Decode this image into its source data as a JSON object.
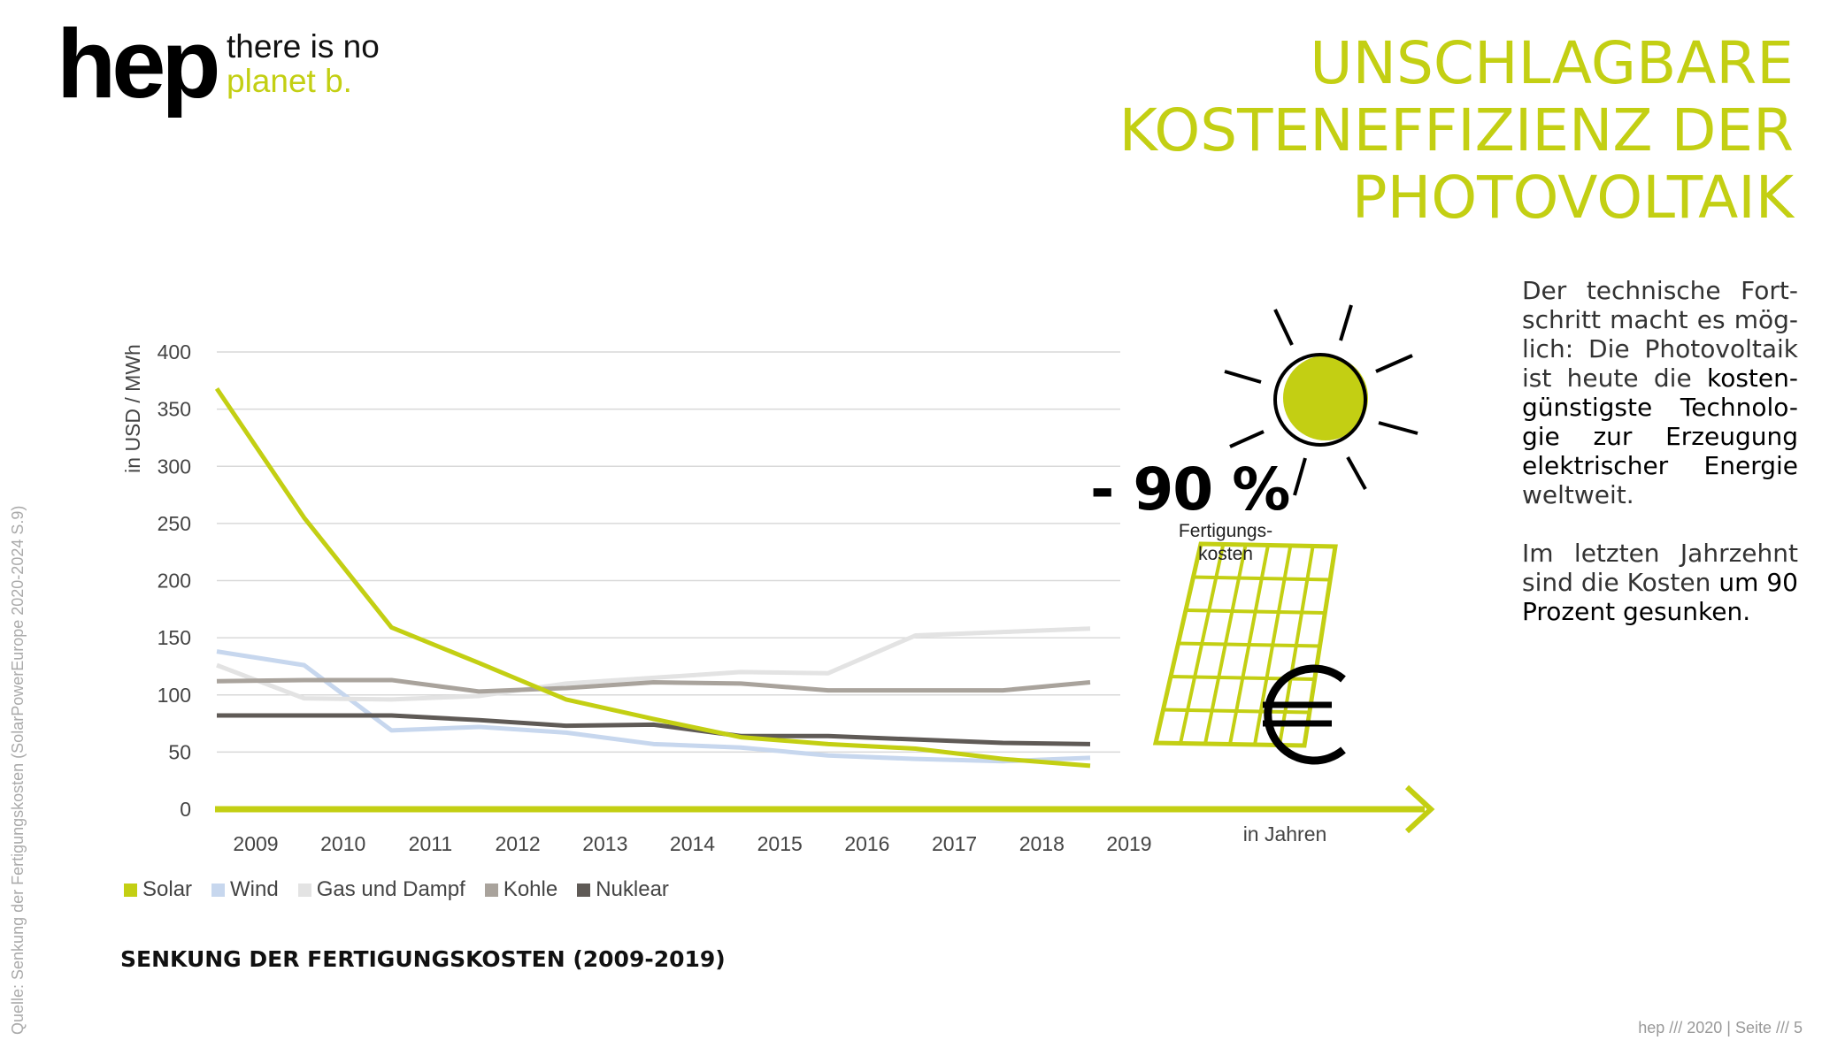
{
  "brand": {
    "logo": "hep",
    "tagline_1": "there is no",
    "tagline_2": "planet b."
  },
  "headline": [
    "UNSCHLAGBARE",
    "KOSTENEFFIZIENZ DER",
    "PHOTOVOLTAIK"
  ],
  "body": {
    "p1_plain_1": "Der technische Fort-schritt macht es mög-lich: Die Photovoltaik ist heute die ",
    "p1_bold": "kosten-günstigste Technolo-gie zur Erzeugung elektrischer Energie",
    "p1_plain_2": " weltweit.",
    "p2_plain": "Im letzten Jahrzehnt sind die Kosten ",
    "p2_bold": "um 90 Prozent gesunken."
  },
  "highlight": {
    "value": "- 90 %",
    "caption_1": "Fertigungs-",
    "caption_2": "kosten"
  },
  "source": "Quelle: Senkung der Fertigungskosten (SolarPowerEurope 2020-2024 S.9)",
  "footer": "hep /// 2020 | Seite /// 5",
  "icons": [
    "sun-icon",
    "solar-panel-icon",
    "euro-icon"
  ],
  "chart_data": {
    "type": "line",
    "title": "SENKUNG DER FERTIGUNGSKOSTEN (2009-2019)",
    "ylabel": "in USD / MWh",
    "xlabel": "in Jahren",
    "ylim": [
      0,
      400
    ],
    "yticks": [
      0,
      50,
      100,
      150,
      200,
      250,
      300,
      350,
      400
    ],
    "grid": true,
    "legend_position": "bottom-left",
    "x": [
      2009,
      2010,
      2011,
      2012,
      2013,
      2014,
      2015,
      2016,
      2017,
      2018,
      2019
    ],
    "series": [
      {
        "name": "Solar",
        "color": "#c3cf13",
        "values": [
          368,
          255,
          159,
          128,
          96,
          79,
          63,
          57,
          53,
          44,
          38
        ]
      },
      {
        "name": "Wind",
        "color": "#c7d7ee",
        "values": [
          138,
          126,
          69,
          72,
          67,
          57,
          54,
          47,
          44,
          42,
          45
        ]
      },
      {
        "name": "Gas und Dampf",
        "color": "#e3e3e3",
        "values": [
          126,
          97,
          96,
          99,
          110,
          115,
          120,
          119,
          152,
          155,
          158
        ]
      },
      {
        "name": "Kohle",
        "color": "#a9a39c",
        "values": [
          112,
          113,
          113,
          103,
          106,
          111,
          110,
          104,
          104,
          104,
          111
        ]
      },
      {
        "name": "Nuklear",
        "color": "#5f5a56",
        "values": [
          82,
          82,
          82,
          78,
          73,
          74,
          64,
          64,
          61,
          58,
          57
        ]
      }
    ]
  }
}
